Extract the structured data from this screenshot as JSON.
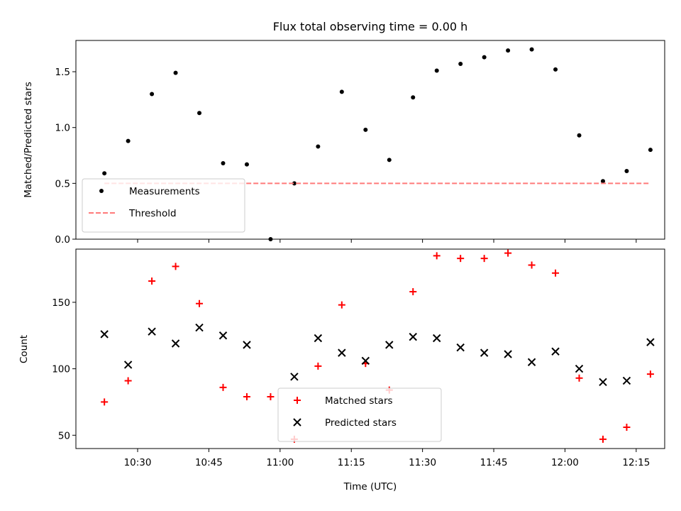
{
  "chart_data": [
    {
      "type": "scatter",
      "title": "Flux total observing time = 0.00 h",
      "xlabel": "",
      "ylabel": "Matched/Predicted stars",
      "xlim": [
        "10:17",
        "12:21"
      ],
      "ylim": [
        0,
        1.78
      ],
      "yticks": [
        0.0,
        0.5,
        1.0,
        1.5
      ],
      "ytick_labels": [
        "0.0",
        "0.5",
        "1.0",
        "1.5"
      ],
      "xticks": [
        "10:30",
        "10:45",
        "11:00",
        "11:15",
        "11:30",
        "11:45",
        "12:00",
        "12:15"
      ],
      "legend": "lower-left",
      "series": [
        {
          "name": "Measurements",
          "marker": "dot",
          "color": "#000000",
          "x": [
            "10:23",
            "10:28",
            "10:33",
            "10:38",
            "10:43",
            "10:48",
            "10:53",
            "10:58",
            "11:03",
            "11:08",
            "11:13",
            "11:18",
            "11:23",
            "11:28",
            "11:33",
            "11:38",
            "11:43",
            "11:48",
            "11:53",
            "11:58",
            "12:03",
            "12:08",
            "12:13",
            "12:18"
          ],
          "y": [
            0.59,
            0.88,
            1.3,
            1.49,
            1.13,
            0.68,
            0.67,
            0.0,
            0.5,
            0.83,
            1.32,
            0.98,
            0.71,
            1.27,
            1.51,
            1.57,
            1.63,
            1.69,
            1.7,
            1.52,
            0.93,
            0.52,
            0.61,
            0.8
          ]
        },
        {
          "name": "Threshold",
          "marker": "dashed-line",
          "color": "#ff7a7a",
          "x": [
            "10:23",
            "12:18"
          ],
          "y": [
            0.5,
            0.5
          ]
        }
      ]
    },
    {
      "type": "scatter",
      "title": "",
      "xlabel": "Time (UTC)",
      "ylabel": "Count",
      "xlim": [
        "10:17",
        "12:21"
      ],
      "ylim": [
        40,
        190
      ],
      "yticks": [
        50,
        100,
        150
      ],
      "ytick_labels": [
        "50",
        "100",
        "150"
      ],
      "xticks": [
        "10:30",
        "10:45",
        "11:00",
        "11:15",
        "11:30",
        "11:45",
        "12:00",
        "12:15"
      ],
      "xtick_labels": [
        "10:30",
        "10:45",
        "11:00",
        "11:15",
        "11:30",
        "11:45",
        "12:00",
        "12:15"
      ],
      "legend": "lower-center",
      "series": [
        {
          "name": "Matched stars",
          "marker": "plus",
          "color": "#ff0000",
          "x": [
            "10:23",
            "10:28",
            "10:33",
            "10:38",
            "10:43",
            "10:48",
            "10:53",
            "10:58",
            "11:03",
            "11:08",
            "11:13",
            "11:18",
            "11:23",
            "11:28",
            "11:33",
            "11:38",
            "11:43",
            "11:48",
            "11:53",
            "11:58",
            "12:03",
            "12:08",
            "12:13",
            "12:18"
          ],
          "y": [
            75,
            91,
            166,
            177,
            149,
            86,
            79,
            79,
            47,
            102,
            148,
            104,
            84,
            158,
            185,
            183,
            183,
            187,
            178,
            172,
            93,
            47,
            56,
            96
          ]
        },
        {
          "name": "Predicted stars",
          "marker": "x",
          "color": "#000000",
          "x": [
            "10:23",
            "10:28",
            "10:33",
            "10:38",
            "10:43",
            "10:48",
            "10:53",
            "11:03",
            "11:08",
            "11:13",
            "11:18",
            "11:23",
            "11:28",
            "11:33",
            "11:38",
            "11:43",
            "11:48",
            "11:53",
            "11:58",
            "12:03",
            "12:08",
            "12:13",
            "12:18"
          ],
          "y": [
            126,
            103,
            128,
            119,
            131,
            125,
            118,
            94,
            123,
            112,
            106,
            118,
            124,
            123,
            116,
            112,
            111,
            105,
            113,
            100,
            90,
            91,
            120
          ]
        }
      ]
    }
  ]
}
